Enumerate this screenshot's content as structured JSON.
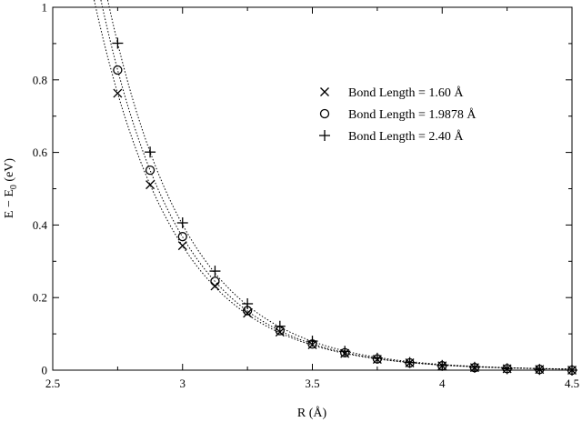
{
  "chart_data": {
    "type": "scatter",
    "xlabel": "R (Å)",
    "ylabel_main": "E − E",
    "ylabel_sub": "0",
    "ylabel_unit": " (eV)",
    "xlim": [
      2.5,
      4.5
    ],
    "ylim": [
      0,
      1
    ],
    "xticks": [
      2.5,
      3,
      3.5,
      4,
      4.5
    ],
    "xtick_labels": [
      "2.5",
      "3",
      "3.5",
      "4",
      "4.5"
    ],
    "yticks": [
      0,
      0.2,
      0.4,
      0.6,
      0.8,
      1
    ],
    "ytick_labels": [
      "0",
      "0.2",
      "0.4",
      "0.6",
      "0.8",
      "1"
    ],
    "grid": false,
    "legend_position": "top-right",
    "series": [
      {
        "name": "Bond Length = 1.60 Å",
        "marker": "x",
        "x": [
          2.75,
          2.875,
          3.0,
          3.125,
          3.25,
          3.375,
          3.5,
          3.625,
          3.75,
          3.875,
          4.0,
          4.125,
          4.25,
          4.375,
          4.5
        ],
        "y": [
          0.763,
          0.511,
          0.343,
          0.232,
          0.157,
          0.105,
          0.07,
          0.046,
          0.03,
          0.02,
          0.012,
          0.007,
          0.004,
          0.002,
          0.0
        ]
      },
      {
        "name": "Bond Length = 1.9878 Å",
        "marker": "circle",
        "x": [
          2.75,
          2.875,
          3.0,
          3.125,
          3.25,
          3.375,
          3.5,
          3.625,
          3.75,
          3.875,
          4.0,
          4.125,
          4.25,
          4.375,
          4.5
        ],
        "y": [
          0.827,
          0.551,
          0.368,
          0.245,
          0.164,
          0.109,
          0.072,
          0.048,
          0.031,
          0.02,
          0.012,
          0.007,
          0.004,
          0.002,
          0.0
        ]
      },
      {
        "name": "Bond Length = 2.40 Å",
        "marker": "plus",
        "x": [
          2.75,
          2.875,
          3.0,
          3.125,
          3.25,
          3.375,
          3.5,
          3.625,
          3.75,
          3.875,
          4.0,
          4.125,
          4.25,
          4.375,
          4.5
        ],
        "y": [
          0.901,
          0.601,
          0.406,
          0.273,
          0.183,
          0.121,
          0.08,
          0.052,
          0.033,
          0.021,
          0.013,
          0.008,
          0.004,
          0.002,
          0.0
        ]
      }
    ]
  }
}
